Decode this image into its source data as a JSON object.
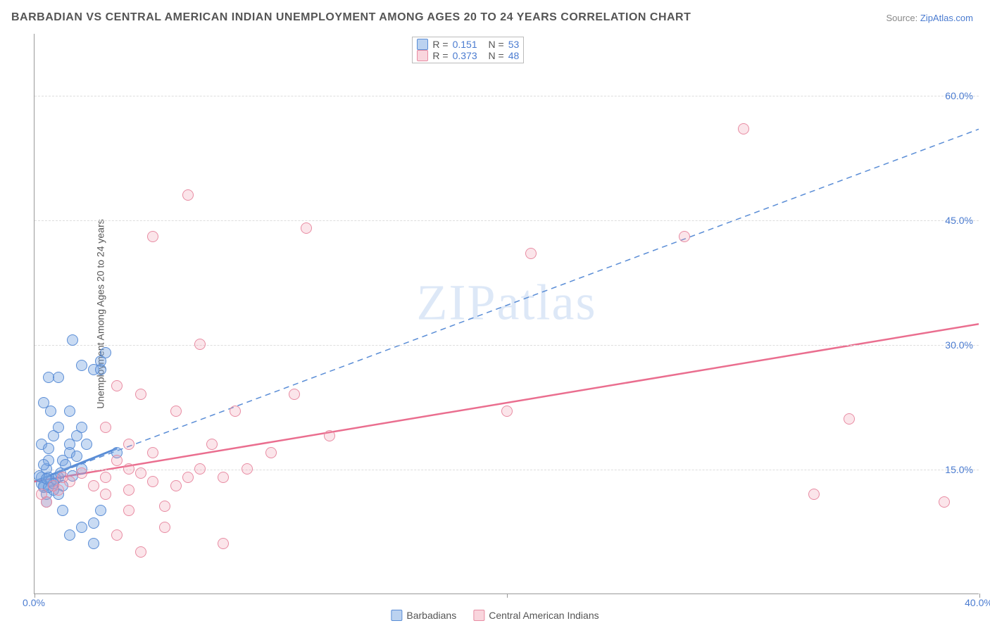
{
  "title": "BARBADIAN VS CENTRAL AMERICAN INDIAN UNEMPLOYMENT AMONG AGES 20 TO 24 YEARS CORRELATION CHART",
  "source_label": "Source: ",
  "source_link": "ZipAtlas.com",
  "y_axis_title": "Unemployment Among Ages 20 to 24 years",
  "watermark": "ZIPatlas",
  "chart": {
    "type": "scatter",
    "xlim": [
      0,
      40
    ],
    "ylim": [
      0,
      67.5
    ],
    "x_ticks": [
      0,
      20,
      40
    ],
    "x_tick_labels": {
      "0": "0.0%",
      "40": "40.0%"
    },
    "y_ticks": [
      15,
      30,
      45,
      60
    ],
    "y_tick_labels": {
      "15": "15.0%",
      "30": "30.0%",
      "45": "45.0%",
      "60": "60.0%"
    },
    "background_color": "#ffffff",
    "grid_color": "#dddddd",
    "axis_color": "#999999",
    "tick_label_color": "#4a7bd0",
    "point_radius": 8,
    "series": [
      {
        "name": "Barbadians",
        "color_fill": "rgba(120,165,225,0.4)",
        "color_stroke": "#5a8dd6",
        "r_value": "0.151",
        "n_value": "53",
        "regression": {
          "x1": 0,
          "y1": 13.5,
          "x2": 40,
          "y2": 56,
          "dashed": true,
          "stroke": "#5a8dd6",
          "width": 1.5,
          "solid_segment": {
            "x1": 0,
            "y1": 13.5,
            "x2": 3.5,
            "y2": 17.5
          }
        },
        "points": [
          [
            0.3,
            14
          ],
          [
            0.4,
            13
          ],
          [
            0.5,
            12
          ],
          [
            0.6,
            14
          ],
          [
            0.7,
            13.5
          ],
          [
            0.8,
            12.5
          ],
          [
            0.5,
            15
          ],
          [
            0.6,
            16
          ],
          [
            0.4,
            15.5
          ],
          [
            1.0,
            14
          ],
          [
            1.2,
            13
          ],
          [
            1.0,
            12
          ],
          [
            0.8,
            19
          ],
          [
            1.0,
            20
          ],
          [
            0.3,
            18
          ],
          [
            0.6,
            17.5
          ],
          [
            1.5,
            18
          ],
          [
            1.8,
            19
          ],
          [
            1.5,
            17
          ],
          [
            1.2,
            16
          ],
          [
            2.0,
            15
          ],
          [
            1.8,
            16.5
          ],
          [
            2.2,
            18
          ],
          [
            2.0,
            20
          ],
          [
            1.5,
            22
          ],
          [
            0.7,
            22
          ],
          [
            0.4,
            23
          ],
          [
            1.0,
            26
          ],
          [
            0.6,
            26
          ],
          [
            2.5,
            27
          ],
          [
            2.0,
            27.5
          ],
          [
            2.8,
            28
          ],
          [
            3.0,
            29
          ],
          [
            2.8,
            27
          ],
          [
            1.6,
            30.5
          ],
          [
            1.5,
            7
          ],
          [
            2.0,
            8
          ],
          [
            2.5,
            8.5
          ],
          [
            1.2,
            10
          ],
          [
            2.5,
            6
          ],
          [
            2.8,
            10
          ],
          [
            3.5,
            17
          ],
          [
            0.5,
            11
          ],
          [
            0.4,
            12.8
          ],
          [
            0.9,
            13.8
          ],
          [
            1.1,
            14.5
          ],
          [
            0.3,
            13.2
          ],
          [
            0.2,
            14.2
          ],
          [
            0.6,
            12.8
          ],
          [
            0.8,
            13.2
          ],
          [
            0.5,
            13.8
          ],
          [
            1.3,
            15.5
          ],
          [
            1.6,
            14.2
          ]
        ]
      },
      {
        "name": "Central American Indians",
        "color_fill": "rgba(240,150,170,0.25)",
        "color_stroke": "#e88ca3",
        "r_value": "0.373",
        "n_value": "48",
        "regression": {
          "x1": 0,
          "y1": 13.5,
          "x2": 40,
          "y2": 32.5,
          "dashed": false,
          "stroke": "#ea6e8f",
          "width": 2.5
        },
        "points": [
          [
            0.3,
            12
          ],
          [
            0.5,
            11
          ],
          [
            0.8,
            13
          ],
          [
            1.0,
            12.5
          ],
          [
            1.5,
            13.5
          ],
          [
            1.2,
            14
          ],
          [
            2.0,
            14.5
          ],
          [
            2.5,
            13
          ],
          [
            3.0,
            14
          ],
          [
            3.5,
            16
          ],
          [
            4.0,
            15
          ],
          [
            4.5,
            14.5
          ],
          [
            5.0,
            13.5
          ],
          [
            4.0,
            12.5
          ],
          [
            3.0,
            12
          ],
          [
            4.0,
            10
          ],
          [
            5.5,
            10.5
          ],
          [
            6.0,
            13
          ],
          [
            6.5,
            14
          ],
          [
            7.0,
            15
          ],
          [
            5.0,
            17
          ],
          [
            4.0,
            18
          ],
          [
            3.0,
            20
          ],
          [
            4.5,
            24
          ],
          [
            3.5,
            25
          ],
          [
            6.0,
            22
          ],
          [
            7.5,
            18
          ],
          [
            8.0,
            14
          ],
          [
            9.0,
            15
          ],
          [
            8.5,
            22
          ],
          [
            10.0,
            17
          ],
          [
            11.0,
            24
          ],
          [
            12.5,
            19
          ],
          [
            11.5,
            44
          ],
          [
            7.0,
            30
          ],
          [
            6.5,
            48
          ],
          [
            5.0,
            43
          ],
          [
            5.5,
            8
          ],
          [
            3.5,
            7
          ],
          [
            4.5,
            5
          ],
          [
            8.0,
            6
          ],
          [
            20.0,
            22
          ],
          [
            21.0,
            41
          ],
          [
            27.5,
            43
          ],
          [
            30.0,
            56
          ],
          [
            34.5,
            21
          ],
          [
            38.5,
            11
          ],
          [
            33.0,
            12
          ]
        ]
      }
    ]
  },
  "legend": {
    "series1_label": "Barbadians",
    "series2_label": "Central American Indians"
  },
  "stats_box": {
    "r_label": "R =",
    "n_label": "N ="
  }
}
